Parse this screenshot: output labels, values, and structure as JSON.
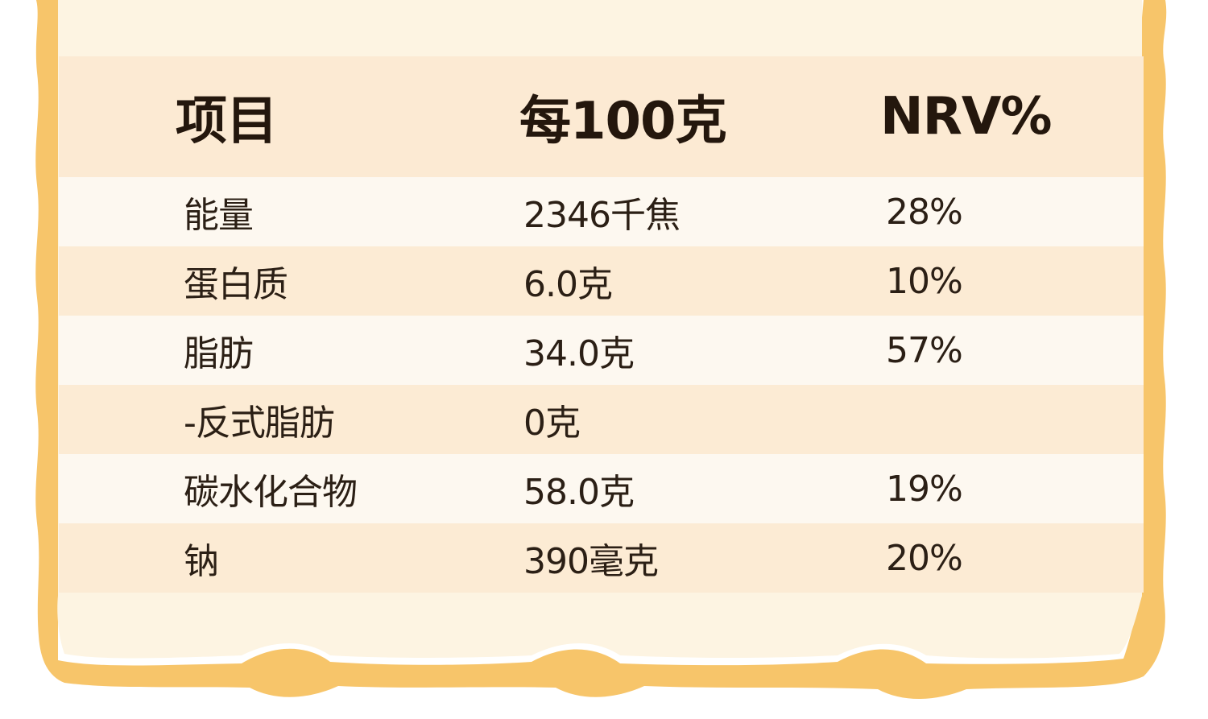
{
  "colors": {
    "frame_orange": "#f7c56a",
    "card_cream": "#fdf4e2",
    "row_tint": "#fcebd4",
    "row_light": "#fdf8f0",
    "text_dark": "#2b1f15"
  },
  "table": {
    "headers": [
      "项目",
      "每100克",
      "NRV%"
    ],
    "rows": [
      {
        "item": "能量",
        "per100g": "2346千焦",
        "nrv": "28%"
      },
      {
        "item": "蛋白质",
        "per100g": "6.0克",
        "nrv": "10%"
      },
      {
        "item": "脂肪",
        "per100g": "34.0克",
        "nrv": "57%"
      },
      {
        "item": "-反式脂肪",
        "per100g": "0克",
        "nrv": ""
      },
      {
        "item": "碳水化合物",
        "per100g": "58.0克",
        "nrv": "19%"
      },
      {
        "item": "钠",
        "per100g": "390毫克",
        "nrv": "20%"
      }
    ]
  }
}
